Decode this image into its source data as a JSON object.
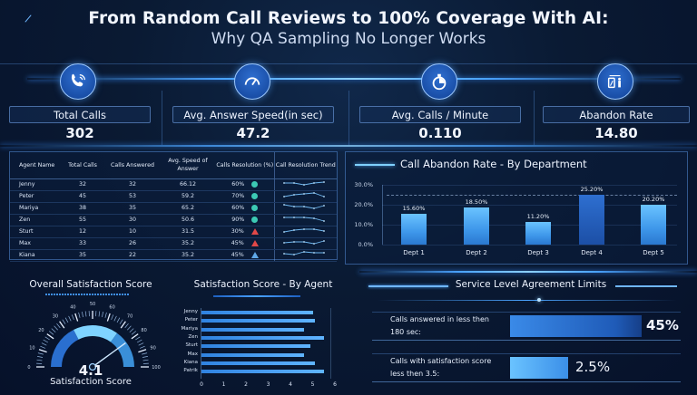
{
  "header": {
    "title": "From Random Call Reviews to 100% Coverage With AI:",
    "subtitle": "Why QA Sampling No Longer Works"
  },
  "kpis": [
    {
      "icon": "phone-icon",
      "label": "Total Calls",
      "value": "302"
    },
    {
      "icon": "speedometer-icon",
      "label": "Avg. Answer Speed(in sec)",
      "value": "47.2"
    },
    {
      "icon": "stopwatch-icon",
      "label": "Avg. Calls / Minute",
      "value": "0.110"
    },
    {
      "icon": "abandon-person-icon",
      "label": "Abandon Rate",
      "value": "14.80"
    }
  ],
  "agent_table": {
    "headers": [
      "Agent Name",
      "Total Calls",
      "Calls Answered",
      "Avg. Speed of Answer",
      "Calls Resolution (%)",
      "Call Resolution Trend"
    ],
    "rows": [
      {
        "name": "Jenny",
        "total": "32",
        "answered": "32",
        "speed": "66.12",
        "resolution": "60%",
        "status": "green-dot"
      },
      {
        "name": "Peter",
        "total": "45",
        "answered": "53",
        "speed": "59.2",
        "resolution": "70%",
        "status": "green-dot"
      },
      {
        "name": "Mariya",
        "total": "38",
        "answered": "35",
        "speed": "65.2",
        "resolution": "60%",
        "status": "green-dot"
      },
      {
        "name": "Zen",
        "total": "55",
        "answered": "30",
        "speed": "50.6",
        "resolution": "90%",
        "status": "green-dot"
      },
      {
        "name": "Sturt",
        "total": "12",
        "answered": "10",
        "speed": "31.5",
        "resolution": "30%",
        "status": "red-triangle"
      },
      {
        "name": "Max",
        "total": "33",
        "answered": "26",
        "speed": "35.2",
        "resolution": "45%",
        "status": "red-triangle"
      },
      {
        "name": "Kiana",
        "total": "35",
        "answered": "22",
        "speed": "35.2",
        "resolution": "45%",
        "status": "blue-triangle"
      }
    ]
  },
  "abandon_chart": {
    "title": "Call Abandon Rate - By Department",
    "y_ticks": [
      "30.0%",
      "20.0%",
      "10.0%",
      "0.0%"
    ],
    "bars": [
      {
        "label": "Dept 1",
        "value": 15.6,
        "display": "15.60%"
      },
      {
        "label": "Dept 2",
        "value": 18.5,
        "display": "18.50%"
      },
      {
        "label": "Dept 3",
        "value": 11.2,
        "display": "11.20%"
      },
      {
        "label": "Dept 4",
        "value": 25.2,
        "display": "25.20%"
      },
      {
        "label": "Dept 5",
        "value": 20.2,
        "display": "20.20%"
      }
    ]
  },
  "satisfaction": {
    "title": "Overall Satisfaction Score",
    "gauge_ticks": [
      "0",
      "10",
      "20",
      "30",
      "40",
      "50",
      "60",
      "70",
      "80",
      "90",
      "100"
    ],
    "score": "4.1",
    "score_label": "Satisfaction Score"
  },
  "agent_satisfaction": {
    "title": "Satisfaction Score - By Agent",
    "x_ticks": [
      "0",
      "1",
      "2",
      "3",
      "4",
      "5",
      "6"
    ],
    "bars": [
      {
        "name": "Jenny",
        "value": 5.0
      },
      {
        "name": "Peter",
        "value": 5.1
      },
      {
        "name": "Mariya",
        "value": 4.6
      },
      {
        "name": "Zen",
        "value": 5.5
      },
      {
        "name": "Sturt",
        "value": 4.9
      },
      {
        "name": "Max",
        "value": 4.6
      },
      {
        "name": "Kiana",
        "value": 5.1
      },
      {
        "name": "Patrik",
        "value": 5.5
      }
    ]
  },
  "sla": {
    "title": "Service Level Agreement Limits",
    "items": [
      {
        "label_line1": "Calls answered in less then",
        "label_line2": "180 sec:",
        "value": "45%"
      },
      {
        "label_line1": "Calls with satisfaction score",
        "label_line2": "less then 3.5:",
        "value": "2.5%"
      }
    ]
  },
  "chart_data": [
    {
      "type": "bar",
      "title": "Call Abandon Rate - By Department",
      "categories": [
        "Dept 1",
        "Dept 2",
        "Dept 3",
        "Dept 4",
        "Dept 5"
      ],
      "values": [
        15.6,
        18.5,
        11.2,
        25.2,
        20.2
      ],
      "xlabel": "",
      "ylabel": "",
      "ylim": [
        0,
        30
      ],
      "y_ticks": [
        "0.0%",
        "10.0%",
        "20.0%",
        "30.0%"
      ],
      "grid": true
    },
    {
      "type": "bar",
      "orientation": "horizontal",
      "title": "Satisfaction Score - By Agent",
      "categories": [
        "Jenny",
        "Peter",
        "Mariya",
        "Zen",
        "Sturt",
        "Max",
        "Kiana",
        "Patrik"
      ],
      "values": [
        5.0,
        5.1,
        4.6,
        5.5,
        4.9,
        4.6,
        5.1,
        5.5
      ],
      "xlim": [
        0,
        6
      ]
    }
  ]
}
